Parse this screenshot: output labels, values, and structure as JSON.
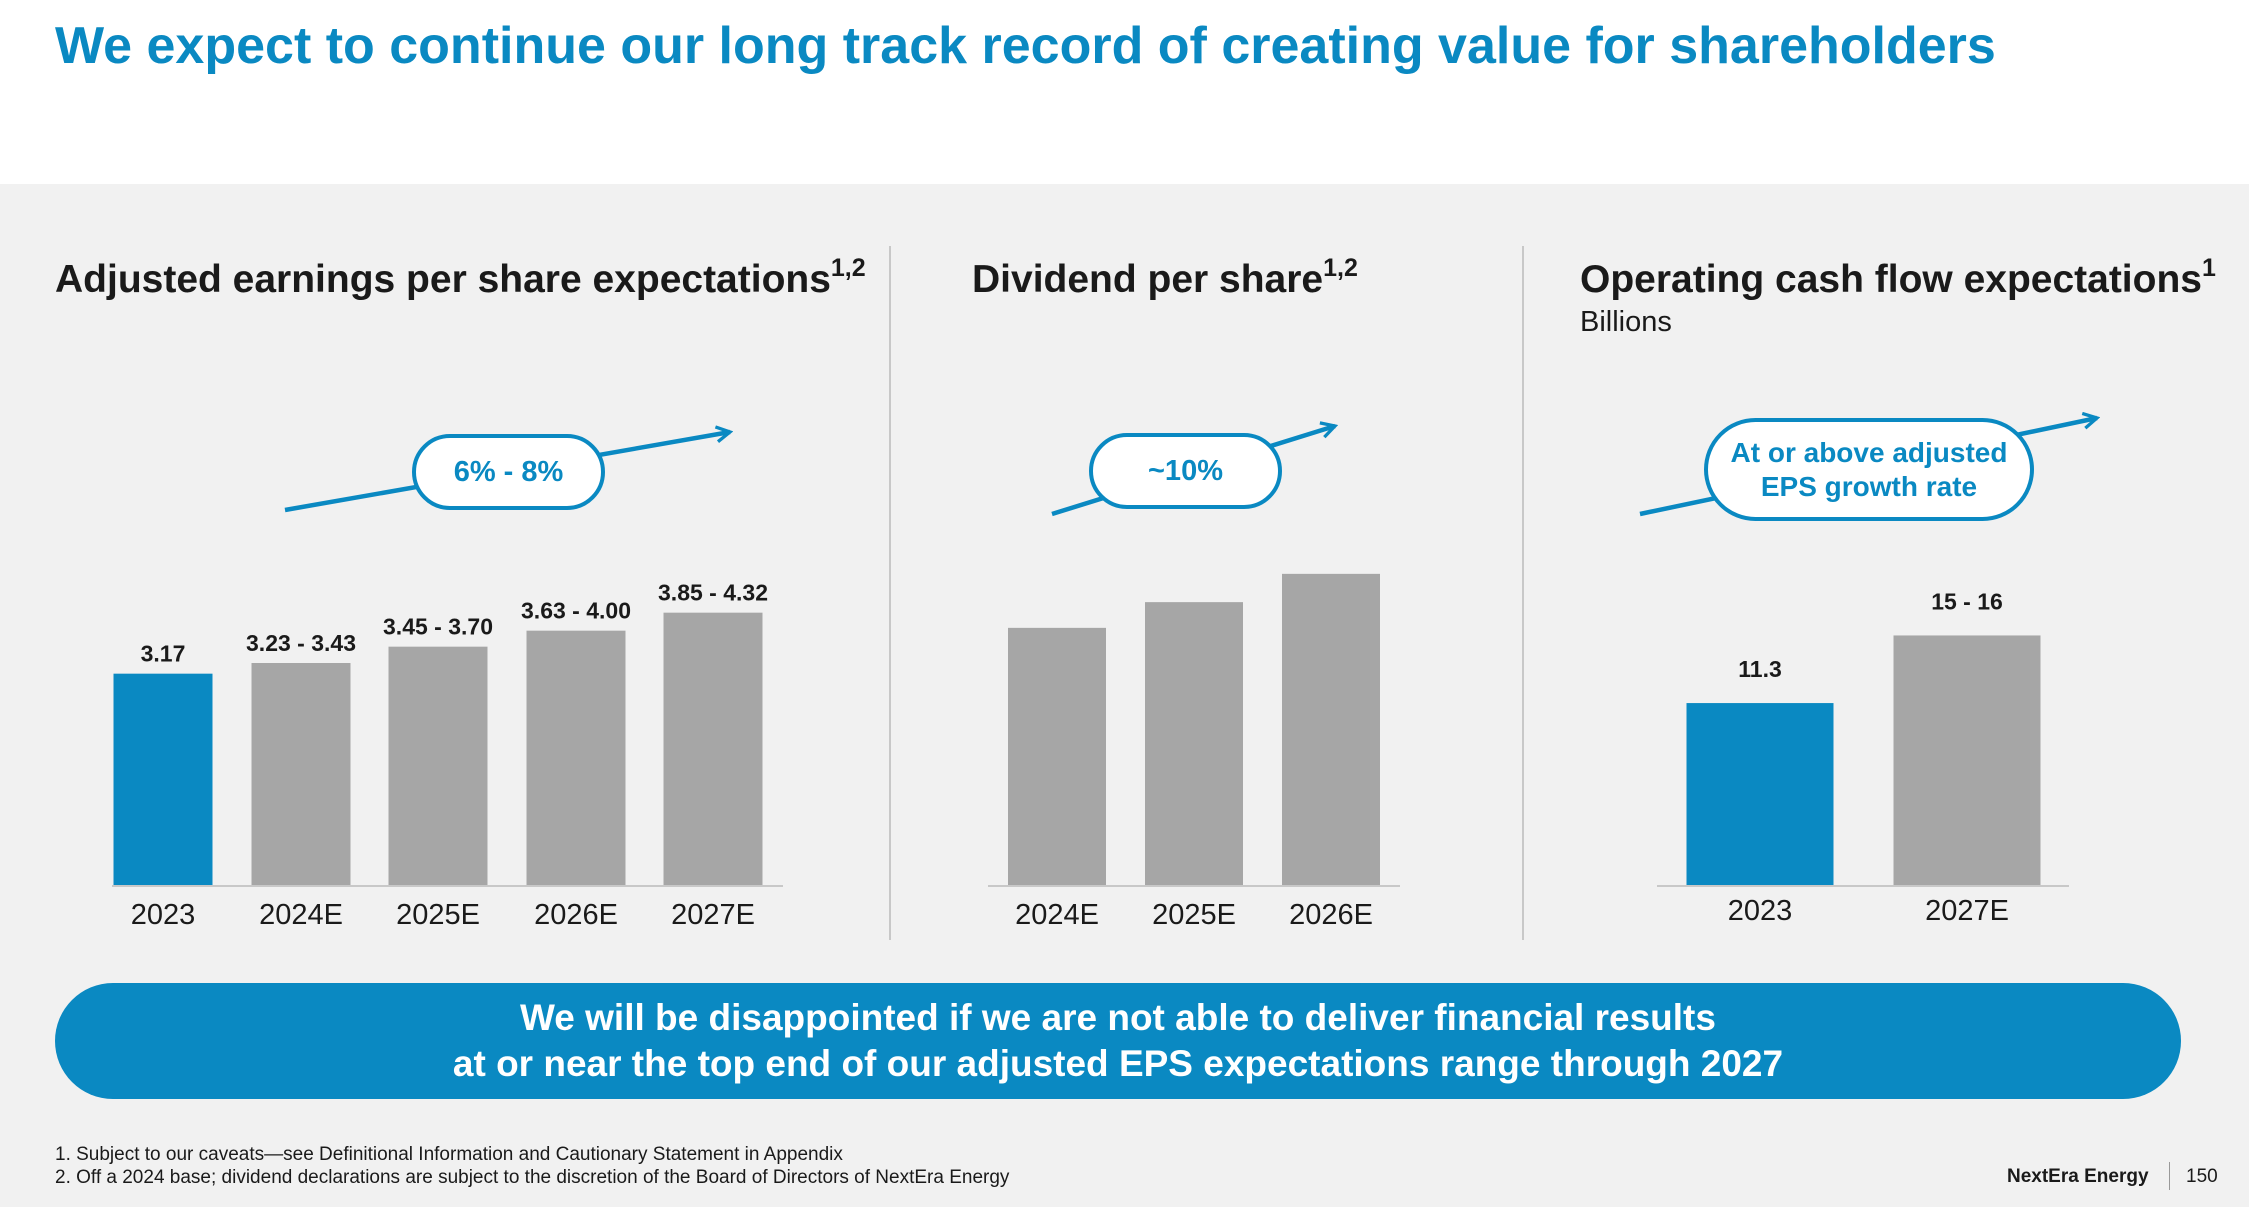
{
  "title": "We expect to continue our long track record of creating value for shareholders",
  "panels": {
    "eps": {
      "title": "Adjusted earnings per share expectations",
      "sup": "1,2",
      "growth": "6% - 8%"
    },
    "dividend": {
      "title": "Dividend per share",
      "sup": "1,2",
      "growth": "~10%"
    },
    "cashflow": {
      "title": "Operating cash flow expectations",
      "sup": "1",
      "subtitle": "Billions",
      "growth_line1": "At or above adjusted",
      "growth_line2": "EPS growth rate"
    }
  },
  "chart_data": [
    {
      "type": "bar",
      "title": "Adjusted earnings per share expectations",
      "categories": [
        "2023",
        "2024E",
        "2025E",
        "2026E",
        "2027E"
      ],
      "values": [
        3.17,
        3.33,
        3.575,
        3.815,
        4.085
      ],
      "labels": [
        "3.17",
        "3.23 - 3.43",
        "3.45 - 3.70",
        "3.63 - 4.00",
        "3.85 - 4.32"
      ],
      "colors": [
        "#0a89c2",
        "#a6a6a6",
        "#a6a6a6",
        "#a6a6a6",
        "#a6a6a6"
      ],
      "ylim": [
        0,
        4.5
      ],
      "annotation": "6% - 8%"
    },
    {
      "type": "bar",
      "title": "Dividend per share",
      "categories": [
        "2024E",
        "2025E",
        "2026E"
      ],
      "values": [
        1.0,
        1.1,
        1.21
      ],
      "labels": [],
      "colors": [
        "#a6a6a6",
        "#a6a6a6",
        "#a6a6a6"
      ],
      "ylim": [
        0,
        1.4
      ],
      "annotation": "~10%"
    },
    {
      "type": "bar",
      "title": "Operating cash flow expectations",
      "ylabel": "Billions",
      "categories": [
        "2023",
        "2027E"
      ],
      "values": [
        11.3,
        15.5
      ],
      "labels": [
        "11.3",
        "15 - 16"
      ],
      "colors": [
        "#0a89c2",
        "#a6a6a6"
      ],
      "ylim": [
        0,
        20
      ],
      "annotation": "At or above adjusted EPS growth rate"
    }
  ],
  "banner": {
    "line1": "We will be disappointed if we are not able to deliver financial results",
    "line2": "at or near the top end of our adjusted EPS expectations range through 2027"
  },
  "footnotes": {
    "note1": "1.  Subject to our caveats—see Definitional Information and Cautionary Statement in Appendix",
    "note2": "2.  Off a 2024 base; dividend declarations are subject to the discretion of the Board of Directors of NextEra Energy"
  },
  "brand": "NextEra Energy",
  "page_number": "150",
  "colors": {
    "accent": "#0a89c2",
    "bar_gray": "#a6a6a6",
    "background_band": "#f1f1f1"
  }
}
